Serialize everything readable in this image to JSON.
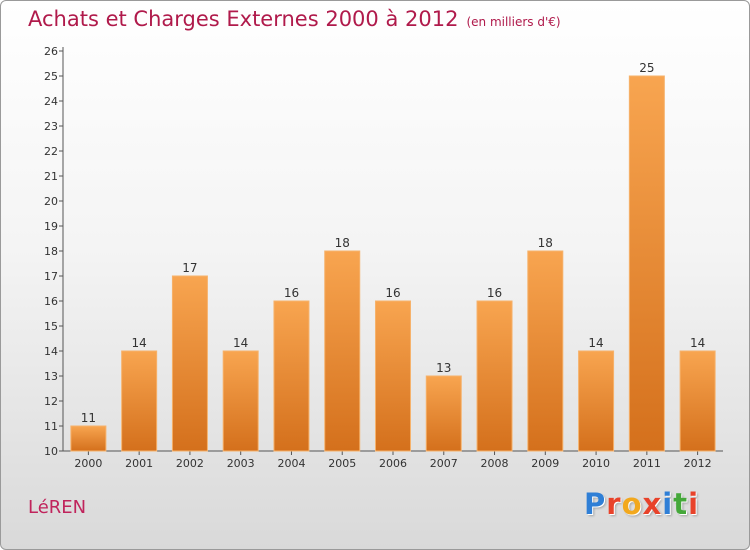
{
  "chart_data": {
    "type": "bar",
    "title": "Achats et Charges Externes 2000 à 2012",
    "subtitle": "(en milliers d'€)",
    "categories": [
      "2000",
      "2001",
      "2002",
      "2003",
      "2004",
      "2005",
      "2006",
      "2007",
      "2008",
      "2009",
      "2010",
      "2011",
      "2012"
    ],
    "values": [
      11,
      14,
      17,
      14,
      16,
      18,
      16,
      13,
      16,
      18,
      14,
      25,
      14
    ],
    "ylim": [
      10,
      26
    ],
    "yticks": [
      10,
      11,
      12,
      13,
      14,
      15,
      16,
      17,
      18,
      19,
      20,
      21,
      22,
      23,
      24,
      25,
      26
    ],
    "grid": false,
    "bar_color": "#f0902e"
  },
  "place_name": "LéREN",
  "logo": {
    "text": "Proxiti",
    "letter_colors": [
      "#2f7fd6",
      "#e8422a",
      "#f2a81d",
      "#e8422a",
      "#2f7fd6",
      "#45a83a",
      "#e8422a"
    ]
  }
}
